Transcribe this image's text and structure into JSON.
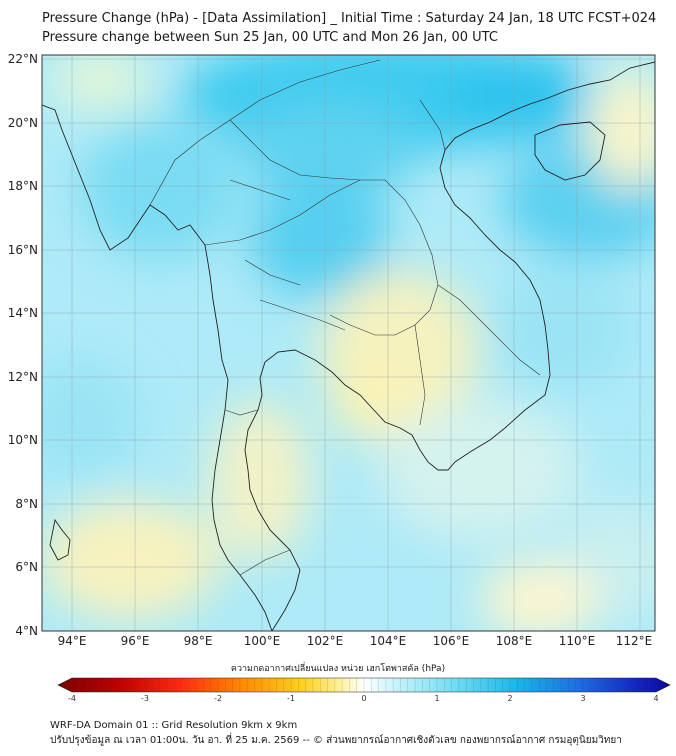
{
  "header": {
    "title": "Pressure Change (hPa) - [Data Assimilation] _ Initial Time : Saturday 24 Jan, 18 UTC FCST+024",
    "subtitle": "Pressure change between Sun 25 Jan, 00 UTC and Mon 26 Jan, 00 UTC"
  },
  "map": {
    "lat_labels": [
      "22°N",
      "20°N",
      "18°N",
      "16°N",
      "14°N",
      "12°N",
      "10°N",
      "8°N",
      "6°N",
      "4°N"
    ],
    "lon_labels": [
      "94°E",
      "96°E",
      "98°E",
      "100°E",
      "102°E",
      "104°E",
      "106°E",
      "108°E",
      "110°E",
      "112°E"
    ],
    "lat_range": [
      4,
      22
    ],
    "lon_range": [
      93,
      112.5
    ]
  },
  "colorbar": {
    "label": "ความกดอากาศเปลี่ยนแปลง หน่วย เฮกโตพาสคัล (hPa)",
    "ticks": [
      "-4",
      "-3",
      "-2",
      "-1",
      "0",
      "1",
      "2",
      "3",
      "4"
    ],
    "range": [
      -4,
      4
    ],
    "colors": [
      "#7a0000",
      "#e01010",
      "#ff7700",
      "#ffd21e",
      "#fff7b8",
      "#ffffff",
      "#c2f3fb",
      "#5fd8f2",
      "#14b4ea",
      "#1e5cde",
      "#0a0aa5"
    ]
  },
  "footer": {
    "line1": "WRF-DA Domain 01 :: Grid Resolution 9km x 9km",
    "line2": "ปรับปรุงข้อมูล ณ เวลา 01:00น. วัน อา. ที่ 25 ม.ค. 2569 -- © ส่วนพยากรณ์อากาศเชิงตัวเลข กองพยากรณ์อากาศ กรมอุตุนิยมวิทยา"
  }
}
